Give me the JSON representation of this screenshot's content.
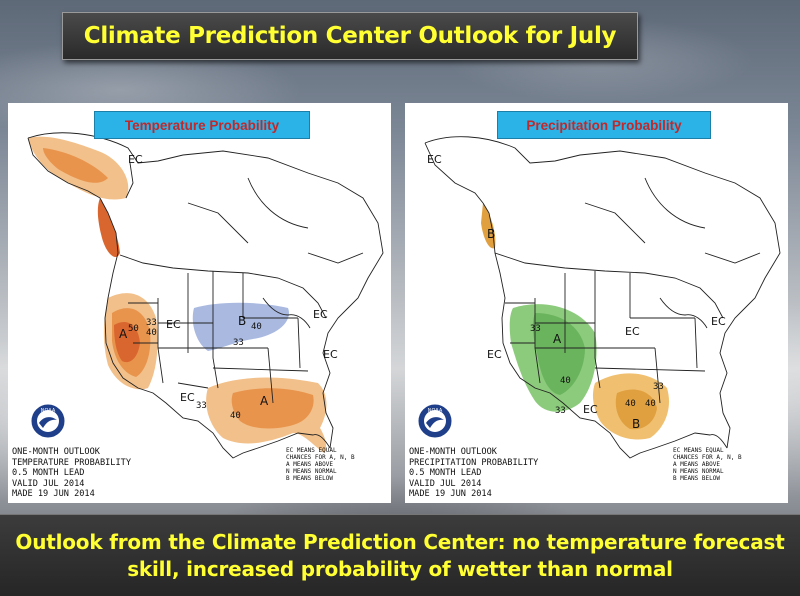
{
  "title": "Climate Prediction Center Outlook for July",
  "maps": [
    {
      "label": "Temperature Probability",
      "info": "ONE-MONTH OUTLOOK\nTEMPERATURE PROBABILITY\n0.5 MONTH LEAD\nVALID JUL 2014\nMADE 19 JUN 2014",
      "legend": "EC MEANS EQUAL\nCHANCES FOR A, N, B\nA MEANS ABOVE\nN MEANS NORMAL\nB MEANS BELOW",
      "region_labels": [
        "EC",
        "EC",
        "EC",
        "EC",
        "EC",
        "A",
        "A",
        "B",
        "33",
        "40",
        "50",
        "33",
        "40",
        "33",
        "40"
      ]
    },
    {
      "label": "Precipitation Probability",
      "info": "ONE-MONTH OUTLOOK\nPRECIPITATION PROBABILITY\n0.5 MONTH LEAD\nVALID JUL 2014\nMADE 19 JUN 2014",
      "legend": "EC MEANS EQUAL\nCHANCES FOR A, N, B\nA MEANS ABOVE\nN MEANS NORMAL\nB MEANS BELOW",
      "region_labels": [
        "EC",
        "EC",
        "EC",
        "EC",
        "EC",
        "A",
        "B",
        "B",
        "33",
        "40",
        "33",
        "40",
        "33",
        "40"
      ]
    }
  ],
  "logo_text": "NOAA",
  "caption": {
    "line1": "Outlook from the Climate Prediction Center: no temperature forecast",
    "line2": "skill, increased probability of wetter than normal"
  },
  "colors": {
    "title_text": "#ffff33",
    "label_bg": "#2bb3e8",
    "label_text": "#c0282a",
    "above_light": "#f2c08a",
    "above_mid": "#e8944d",
    "above_dark": "#d9662e",
    "below": "#a9b9e0",
    "wet": "#8ccb7c",
    "wet_dark": "#6bb45e",
    "dry": "#f0c070",
    "dry_dark": "#e0a040"
  }
}
